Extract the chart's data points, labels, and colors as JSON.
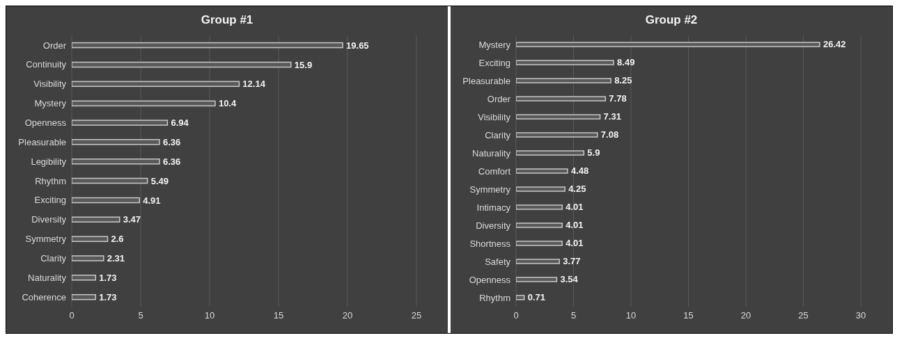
{
  "chart_data": [
    {
      "type": "bar",
      "orientation": "horizontal",
      "title": "Group #1",
      "categories": [
        "Order",
        "Continuity",
        "Visibility",
        "Mystery",
        "Openness",
        "Pleasurable",
        "Legibility",
        "Rhythm",
        "Exciting",
        "Diversity",
        "Symmetry",
        "Clarity",
        "Naturality",
        "Coherence"
      ],
      "values": [
        19.65,
        15.9,
        12.14,
        10.4,
        6.94,
        6.36,
        6.36,
        5.49,
        4.91,
        3.47,
        2.6,
        2.31,
        1.73,
        1.73
      ],
      "color": "#595959",
      "xlim": [
        0,
        25
      ],
      "xticks": [
        0,
        5,
        10,
        15,
        20,
        25
      ],
      "grid": "x",
      "data_labels": true
    },
    {
      "type": "bar",
      "orientation": "horizontal",
      "title": "Group #2",
      "categories": [
        "Mystery",
        "Exciting",
        "Pleasurable",
        "Order",
        "Visibility",
        "Clarity",
        "Naturality",
        "Comfort",
        "Symmetry",
        "Intimacy",
        "Diversity",
        "Shortness",
        "Safety",
        "Openness",
        "Rhythm"
      ],
      "values": [
        26.42,
        8.49,
        8.25,
        7.78,
        7.31,
        7.08,
        5.9,
        4.48,
        4.25,
        4.01,
        4.01,
        4.01,
        3.77,
        3.54,
        0.71
      ],
      "color": "#595959",
      "xlim": [
        0,
        30
      ],
      "xticks": [
        0,
        5,
        10,
        15,
        20,
        25,
        30
      ],
      "grid": "x",
      "data_labels": true
    }
  ]
}
